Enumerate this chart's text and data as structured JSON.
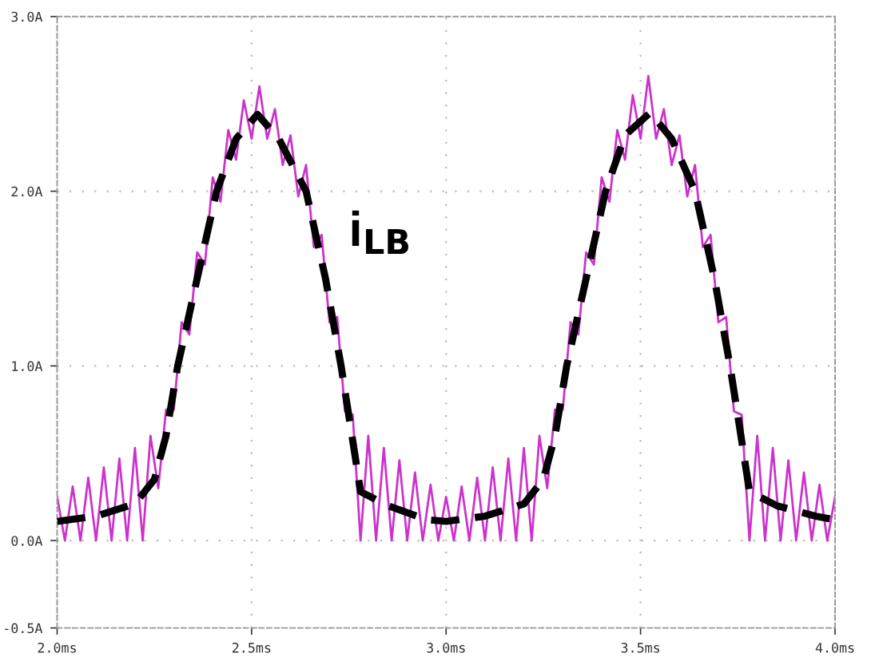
{
  "chart_data": {
    "type": "line",
    "annotations": [
      "i$_{LB}$"
    ],
    "xlim": [
      2.0,
      4.0
    ],
    "xticks": [
      {
        "value": 2.0,
        "label": "2.0ms"
      },
      {
        "value": 2.5,
        "label": "2.5ms"
      },
      {
        "value": 3.0,
        "label": "3.0ms"
      },
      {
        "value": 3.5,
        "label": "3.5ms"
      },
      {
        "value": 4.0,
        "label": "4.0ms"
      }
    ],
    "ylim": [
      -0.5,
      3.0
    ],
    "yticks": [
      {
        "value": -0.5,
        "label": "-0.5A"
      },
      {
        "value": 0.0,
        "label": "0.0A"
      },
      {
        "value": 1.0,
        "label": "1.0A"
      },
      {
        "value": 2.0,
        "label": "2.0A"
      },
      {
        "value": 3.0,
        "label": "3.0A"
      }
    ],
    "grid": true,
    "legend": false,
    "series": [
      {
        "color": "#cc33cc",
        "line_style": "solid",
        "x": [
          2.0,
          2.02,
          2.04,
          2.06,
          2.08,
          2.1,
          2.12,
          2.14,
          2.16,
          2.18,
          2.2,
          2.22,
          2.24,
          2.26,
          2.28,
          2.3,
          2.32,
          2.34,
          2.36,
          2.38,
          2.4,
          2.42,
          2.44,
          2.46,
          2.48,
          2.5,
          2.52,
          2.54,
          2.56,
          2.58,
          2.6,
          2.62,
          2.64,
          2.66,
          2.68,
          2.7,
          2.72,
          2.74,
          2.76,
          2.78,
          2.8,
          2.82,
          2.84,
          2.86,
          2.88,
          2.9,
          2.92,
          2.94,
          2.96,
          2.98,
          3.0,
          3.02,
          3.04,
          3.06,
          3.08,
          3.1,
          3.12,
          3.14,
          3.16,
          3.18,
          3.2,
          3.22,
          3.24,
          3.26,
          3.28,
          3.3,
          3.32,
          3.34,
          3.36,
          3.38,
          3.4,
          3.42,
          3.44,
          3.46,
          3.48,
          3.5,
          3.52,
          3.54,
          3.56,
          3.58,
          3.6,
          3.62,
          3.64,
          3.66,
          3.68,
          3.7,
          3.72,
          3.74,
          3.76,
          3.78,
          3.8,
          3.82,
          3.84,
          3.86,
          3.88,
          3.9,
          3.92,
          3.94,
          3.96,
          3.98,
          4.0
        ],
        "values": [
          0.25,
          0,
          0.31,
          0,
          0.36,
          0,
          0.42,
          0,
          0.47,
          0,
          0.53,
          0,
          0.6,
          0.3,
          0.75,
          0.75,
          1.25,
          1.18,
          1.65,
          1.58,
          2.08,
          1.94,
          2.35,
          2.18,
          2.52,
          2.3,
          2.6,
          2.3,
          2.47,
          2.15,
          2.32,
          1.97,
          2.15,
          1.68,
          1.75,
          1.25,
          1.28,
          0.74,
          0.72,
          0,
          0.6,
          0,
          0.53,
          0,
          0.46,
          0,
          0.39,
          0,
          0.32,
          0,
          0.25,
          0,
          0.31,
          0,
          0.36,
          0,
          0.42,
          0,
          0.47,
          0,
          0.53,
          0,
          0.6,
          0.3,
          0.75,
          0.75,
          1.25,
          1.18,
          1.65,
          1.58,
          2.08,
          1.94,
          2.35,
          2.18,
          2.55,
          2.3,
          2.66,
          2.3,
          2.47,
          2.15,
          2.32,
          1.97,
          2.15,
          1.68,
          1.75,
          1.25,
          1.28,
          0.74,
          0.72,
          0,
          0.6,
          0,
          0.53,
          0,
          0.46,
          0,
          0.39,
          0,
          0.32,
          0,
          0.25
        ]
      },
      {
        "color": "#000000",
        "line_style": "dashed",
        "x": [
          2.0,
          2.1,
          2.2,
          2.25,
          2.28,
          2.31,
          2.36,
          2.41,
          2.46,
          2.515,
          2.57,
          2.64,
          2.69,
          2.73,
          2.765,
          2.78,
          2.85,
          2.95,
          3.0,
          3.1,
          3.2,
          3.25,
          3.28,
          3.31,
          3.36,
          3.41,
          3.46,
          3.525,
          3.58,
          3.64,
          3.69,
          3.73,
          3.765,
          3.78,
          3.85,
          3.95,
          4.0
        ],
        "values": [
          0.11,
          0.14,
          0.21,
          0.35,
          0.6,
          1.0,
          1.5,
          2.0,
          2.3,
          2.44,
          2.3,
          2.0,
          1.5,
          1.0,
          0.5,
          0.28,
          0.2,
          0.12,
          0.11,
          0.14,
          0.21,
          0.35,
          0.6,
          1.0,
          1.5,
          2.0,
          2.32,
          2.45,
          2.3,
          2.0,
          1.5,
          1.0,
          0.5,
          0.28,
          0.2,
          0.14,
          0.12
        ]
      }
    ]
  }
}
